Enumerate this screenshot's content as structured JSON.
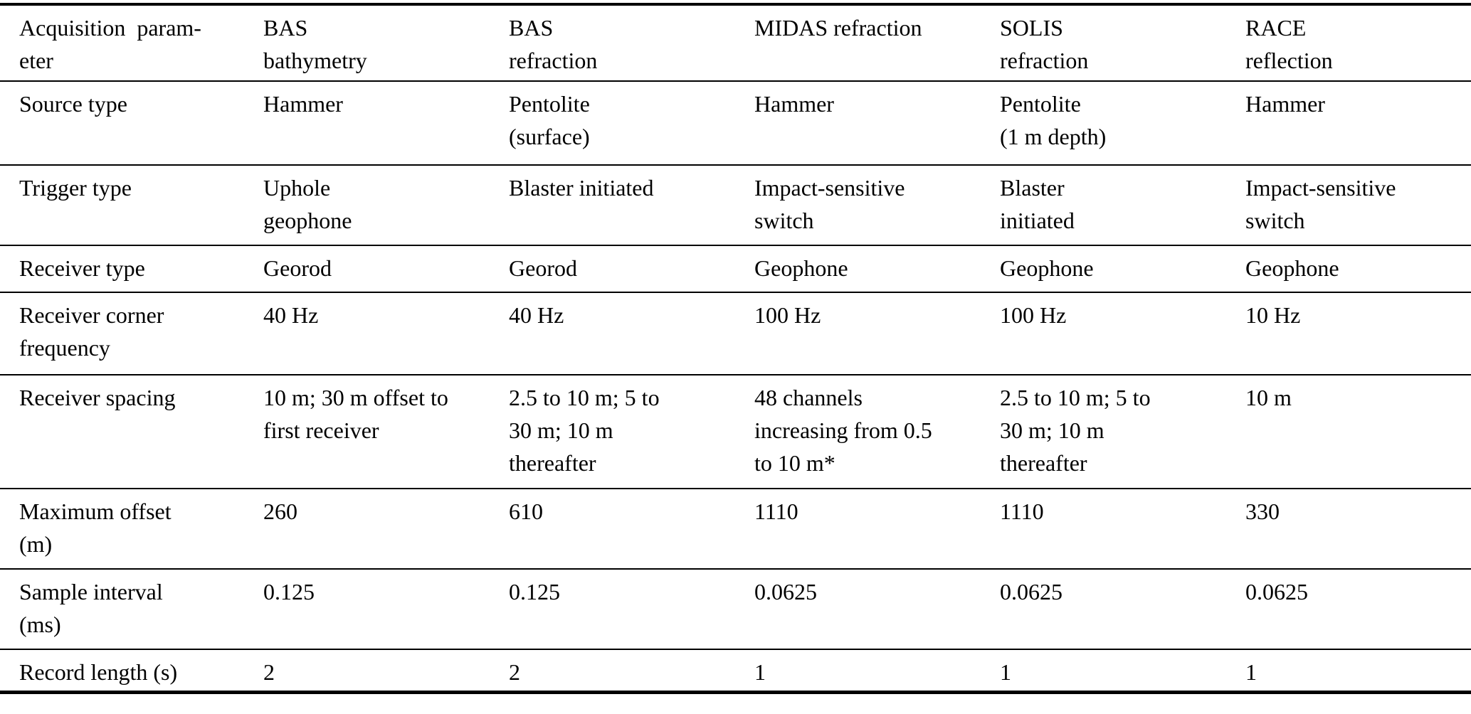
{
  "title": "Seismic acquisition parameters table",
  "colors": {
    "background": "#ffffff",
    "text": "#000000",
    "rule": "#000000"
  },
  "chart_data": {
    "type": "table",
    "columns": [
      "Acquisition parameter",
      "BAS bathymetry",
      "BAS refraction",
      "MIDAS refraction",
      "SOLIS refraction",
      "RACE reflection"
    ],
    "rows": [
      [
        "Source type",
        "Hammer",
        "Pentolite (surface)",
        "Hammer",
        "Pentolite (1 m depth)",
        "Hammer"
      ],
      [
        "Trigger type",
        "Uphole geophone",
        "Blaster initiated",
        "Impact-sensitive switch",
        "Blaster initiated",
        "Impact-sensitive switch"
      ],
      [
        "Receiver type",
        "Georod",
        "Georod",
        "Geophone",
        "Geophone",
        "Geophone"
      ],
      [
        "Receiver corner frequency",
        "40 Hz",
        "40 Hz",
        "100 Hz",
        "100 Hz",
        "10 Hz"
      ],
      [
        "Receiver spacing",
        "10 m; 30 m offset to first receiver",
        "2.5 to 10 m; 5 to 30 m; 10 m thereafter",
        "48 channels increasing from 0.5 to 10 m*",
        "2.5 to 10 m; 5 to 30 m; 10 m thereafter",
        "10 m"
      ],
      [
        "Maximum offset (m)",
        "260",
        "610",
        "1110",
        "1110",
        "330"
      ],
      [
        "Sample interval (ms)",
        "0.125",
        "0.125",
        "0.0625",
        "0.0625",
        "0.0625"
      ],
      [
        "Record length (s)",
        "2",
        "2",
        "1",
        "1",
        "1"
      ]
    ]
  },
  "table": {
    "columns": [
      "Acquisition  param-\neter",
      "BAS\nbathymetry",
      "BAS\nrefraction",
      "MIDAS refraction",
      "SOLIS\nrefraction",
      "RACE\nreflection"
    ],
    "rows": [
      {
        "param": "Source type",
        "values": [
          "Hammer",
          "Pentolite\n(surface)",
          "Hammer",
          "Pentolite\n(1 m depth)",
          "Hammer"
        ]
      },
      {
        "param": "Trigger type",
        "values": [
          "Uphole\ngeophone",
          "Blaster initiated",
          "Impact-sensitive\nswitch",
          "Blaster\ninitiated",
          "Impact-sensitive\nswitch"
        ]
      },
      {
        "param": "Receiver type",
        "values": [
          "Georod",
          "Georod",
          "Geophone",
          "Geophone",
          "Geophone"
        ]
      },
      {
        "param": "Receiver corner\nfrequency",
        "values": [
          "40 Hz",
          "40 Hz",
          "100 Hz",
          "100 Hz",
          "10 Hz"
        ]
      },
      {
        "param": "Receiver spacing",
        "values": [
          "10 m; 30 m offset to\nfirst receiver",
          "2.5 to 10 m; 5 to\n30 m; 10 m\nthereafter",
          "48 channels\nincreasing from 0.5\nto 10 m*",
          "2.5 to 10 m; 5 to\n30 m; 10 m\nthereafter",
          "10 m"
        ]
      },
      {
        "param": "Maximum offset\n(m)",
        "values": [
          "260",
          "610",
          "1110",
          "1110",
          "330"
        ]
      },
      {
        "param": "Sample interval\n(ms)",
        "values": [
          "0.125",
          "0.125",
          "0.0625",
          "0.0625",
          "0.0625"
        ]
      },
      {
        "param": "Record length (s)",
        "values": [
          "2",
          "2",
          "1",
          "1",
          "1"
        ]
      }
    ]
  }
}
